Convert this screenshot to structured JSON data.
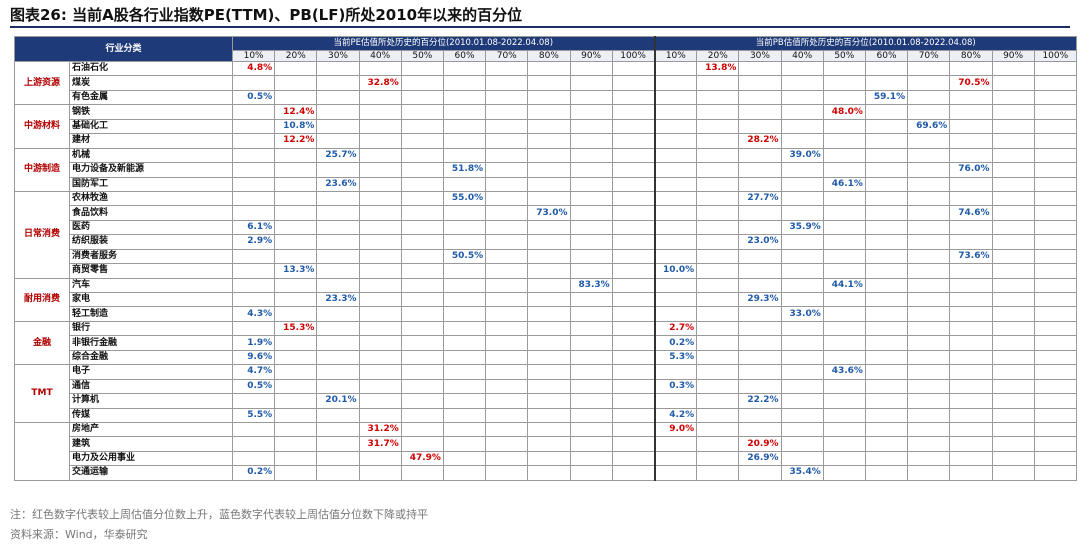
{
  "title": "图表26:  当前A股各行业指数PE(TTM)、PB(LF)所处2010年以来的百分位",
  "table": {
    "category_header": "行业分类",
    "pe_group_header": "当前PE估值所处历史的百分位(2010.01.08-2022.04.08)",
    "pb_group_header": "当前PB估值所处历史的百分位(2010.01.08-2022.04.08)",
    "percentile_headers": [
      "10%",
      "20%",
      "30%",
      "40%",
      "50%",
      "60%",
      "70%",
      "80%",
      "90%",
      "100%"
    ]
  },
  "colors": {
    "up": "#d00000",
    "down": "#1f5aa8",
    "header": "#1f3a78",
    "group": "#b00000"
  },
  "chart_data": {
    "type": "table",
    "title": "当前A股各行业指数PE(TTM)、PB(LF)所处2010年以来的百分位",
    "columns": [
      "PE百分位",
      "PB百分位"
    ],
    "rows": [
      {
        "group": "上游资源",
        "industry": "石油石化",
        "pe": 4.8,
        "pe_dir": "up",
        "pb": 13.8,
        "pb_dir": "up"
      },
      {
        "group": "上游资源",
        "industry": "煤炭",
        "pe": 32.8,
        "pe_dir": "up",
        "pb": 70.5,
        "pb_dir": "up"
      },
      {
        "group": "上游资源",
        "industry": "有色金属",
        "pe": 0.5,
        "pe_dir": "down",
        "pb": 59.1,
        "pb_dir": "down"
      },
      {
        "group": "中游材料",
        "industry": "钢铁",
        "pe": 12.4,
        "pe_dir": "up",
        "pb": 48.0,
        "pb_dir": "up"
      },
      {
        "group": "中游材料",
        "industry": "基础化工",
        "pe": 10.8,
        "pe_dir": "down",
        "pb": 69.6,
        "pb_dir": "down"
      },
      {
        "group": "中游材料",
        "industry": "建材",
        "pe": 12.2,
        "pe_dir": "up",
        "pb": 28.2,
        "pb_dir": "up"
      },
      {
        "group": "中游制造",
        "industry": "机械",
        "pe": 25.7,
        "pe_dir": "down",
        "pb": 39.0,
        "pb_dir": "down"
      },
      {
        "group": "中游制造",
        "industry": "电力设备及新能源",
        "pe": 51.8,
        "pe_dir": "down",
        "pb": 76.0,
        "pb_dir": "down"
      },
      {
        "group": "中游制造",
        "industry": "国防军工",
        "pe": 23.6,
        "pe_dir": "down",
        "pb": 46.1,
        "pb_dir": "down"
      },
      {
        "group": "日常消费",
        "industry": "农林牧渔",
        "pe": 55.0,
        "pe_dir": "down",
        "pb": 27.7,
        "pb_dir": "down"
      },
      {
        "group": "日常消费",
        "industry": "食品饮料",
        "pe": 73.0,
        "pe_dir": "down",
        "pb": 74.6,
        "pb_dir": "down"
      },
      {
        "group": "日常消费",
        "industry": "医药",
        "pe": 6.1,
        "pe_dir": "down",
        "pb": 35.9,
        "pb_dir": "down"
      },
      {
        "group": "日常消费",
        "industry": "纺织服装",
        "pe": 2.9,
        "pe_dir": "down",
        "pb": 23.0,
        "pb_dir": "down"
      },
      {
        "group": "日常消费",
        "industry": "消费者服务",
        "pe": 50.5,
        "pe_dir": "down",
        "pb": 73.6,
        "pb_dir": "down"
      },
      {
        "group": "日常消费",
        "industry": "商贸零售",
        "pe": 13.3,
        "pe_dir": "down",
        "pb": 10.0,
        "pb_dir": "down"
      },
      {
        "group": "耐用消费",
        "industry": "汽车",
        "pe": 83.3,
        "pe_dir": "down",
        "pb": 44.1,
        "pb_dir": "down"
      },
      {
        "group": "耐用消费",
        "industry": "家电",
        "pe": 23.3,
        "pe_dir": "down",
        "pb": 29.3,
        "pb_dir": "down"
      },
      {
        "group": "耐用消费",
        "industry": "轻工制造",
        "pe": 4.3,
        "pe_dir": "down",
        "pb": 33.0,
        "pb_dir": "down"
      },
      {
        "group": "金融",
        "industry": "银行",
        "pe": 15.3,
        "pe_dir": "up",
        "pb": 2.7,
        "pb_dir": "up"
      },
      {
        "group": "金融",
        "industry": "非银行金融",
        "pe": 1.9,
        "pe_dir": "down",
        "pb": 0.2,
        "pb_dir": "down"
      },
      {
        "group": "金融",
        "industry": "综合金融",
        "pe": 9.6,
        "pe_dir": "down",
        "pb": 5.3,
        "pb_dir": "down"
      },
      {
        "group": "TMT",
        "industry": "电子",
        "pe": 4.7,
        "pe_dir": "down",
        "pb": 43.6,
        "pb_dir": "down"
      },
      {
        "group": "TMT",
        "industry": "通信",
        "pe": 0.5,
        "pe_dir": "down",
        "pb": 0.3,
        "pb_dir": "down"
      },
      {
        "group": "TMT",
        "industry": "计算机",
        "pe": 20.1,
        "pe_dir": "down",
        "pb": 22.2,
        "pb_dir": "down"
      },
      {
        "group": "TMT",
        "industry": "传媒",
        "pe": 5.5,
        "pe_dir": "down",
        "pb": 4.2,
        "pb_dir": "down"
      },
      {
        "group": "",
        "industry": "房地产",
        "pe": 31.2,
        "pe_dir": "up",
        "pb": 9.0,
        "pb_dir": "up"
      },
      {
        "group": "",
        "industry": "建筑",
        "pe": 31.7,
        "pe_dir": "up",
        "pb": 20.9,
        "pb_dir": "up"
      },
      {
        "group": "",
        "industry": "电力及公用事业",
        "pe": 47.9,
        "pe_dir": "up",
        "pb": 26.9,
        "pb_dir": "down"
      },
      {
        "group": "",
        "industry": "交通运输",
        "pe": 0.2,
        "pe_dir": "down",
        "pb": 35.4,
        "pb_dir": "down"
      }
    ]
  },
  "footer": {
    "note": "注：红色数字代表较上周估值分位数上升，蓝色数字代表较上周估值分位数下降或持平",
    "source": "资料来源：Wind，华泰研究"
  }
}
